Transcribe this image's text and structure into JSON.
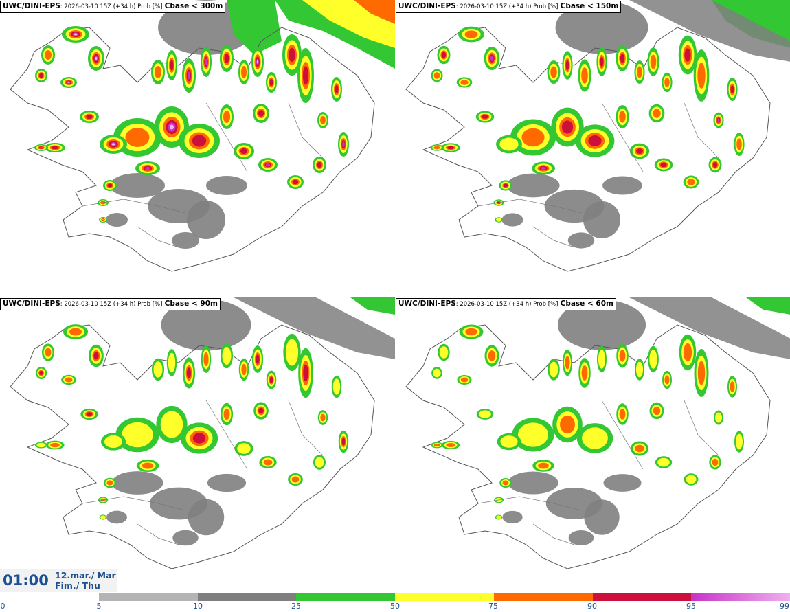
{
  "panels": [
    {
      "model": "UWC/DINI-EPS",
      "meta": ": 2026-03-10 15Z (+34 h) Prob [%]",
      "threshold": "Cbase < 300m"
    },
    {
      "model": "UWC/DINI-EPS",
      "meta": ": 2026-03-10 15Z (+34 h) Prob [%]",
      "threshold": "Cbase < 150m"
    },
    {
      "model": "UWC/DINI-EPS",
      "meta": ": 2026-03-10 15Z (+34 h) Prob [%]",
      "threshold": "Cbase < 90m"
    },
    {
      "model": "UWC/DINI-EPS",
      "meta": ": 2026-03-10 15Z (+34 h) Prob [%]",
      "threshold": "Cbase < 60m"
    }
  ],
  "valid_time": {
    "time": "01:00",
    "date_line1": "12.mar./ Mar",
    "date_line2": "Fim./ Thu"
  },
  "legend": {
    "ticks": [
      "0",
      "5",
      "10",
      "25",
      "50",
      "75",
      "90",
      "95",
      "99"
    ],
    "colors": [
      "#b4b4b4",
      "#7f7f7f",
      "#34c734",
      "#ffff2a",
      "#ff6a00",
      "#cc0f3c",
      "#c733c7",
      "#f0b0f0"
    ]
  }
}
